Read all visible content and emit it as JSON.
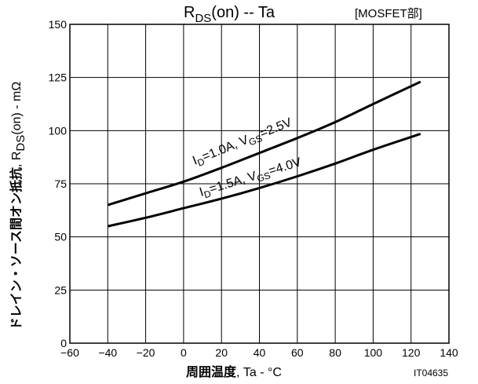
{
  "chart_data": {
    "type": "line",
    "title_main": "R",
    "title_sub": "DS",
    "title_rest": "(on)  --  Ta",
    "tag": "[MOSFET部]",
    "ylabel_jp": "ドレイン・ソース間オン抵抗",
    "ylabel_comma": ",  R",
    "ylabel_sub": "DS",
    "ylabel_rest": "(on)  -  mΩ",
    "xlabel_jp": "周囲温度",
    "xlabel_rest": ",  Ta  -  °C",
    "figure_code": "IT04635",
    "xlim": [
      -60,
      140
    ],
    "ylim": [
      0,
      150
    ],
    "xticks": [
      -60,
      -40,
      -20,
      0,
      20,
      40,
      60,
      80,
      100,
      120,
      140
    ],
    "xtick_labels": [
      "−60",
      "−40",
      "−20",
      "0",
      "20",
      "40",
      "60",
      "80",
      "100",
      "120",
      "140"
    ],
    "yticks": [
      0,
      25,
      50,
      75,
      100,
      125,
      150
    ],
    "ytick_labels": [
      "0",
      "25",
      "50",
      "75",
      "100",
      "125",
      "150"
    ],
    "grid": true,
    "series": [
      {
        "label_parts": [
          "I",
          "D",
          "=1.0A,  V",
          "GS",
          "=2.5V"
        ],
        "x": [
          -40,
          -20,
          0,
          20,
          40,
          60,
          80,
          100,
          125
        ],
        "y": [
          65,
          70.5,
          76,
          82.5,
          89.5,
          96.5,
          104,
          112.5,
          123
        ]
      },
      {
        "label_parts": [
          "I",
          "D",
          "=1.5A,  V",
          "GS",
          "=4.0V"
        ],
        "x": [
          -40,
          -20,
          0,
          20,
          40,
          60,
          80,
          100,
          125
        ],
        "y": [
          55,
          59,
          63.5,
          68,
          73,
          78.5,
          84.5,
          91,
          98.5
        ]
      }
    ]
  }
}
